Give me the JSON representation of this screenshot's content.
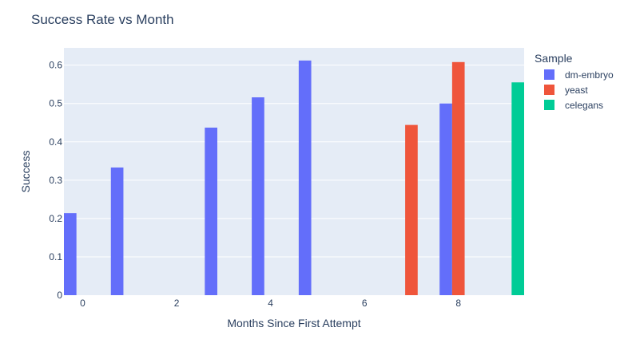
{
  "chart_data": {
    "type": "bar",
    "title": "Success Rate vs Month",
    "xlabel": "Months Since First Attempt",
    "ylabel": "Success",
    "xlim": [
      -0.4,
      9.4
    ],
    "ylim": [
      0,
      0.645
    ],
    "xticks": [
      0,
      2,
      4,
      6,
      8
    ],
    "yticks": [
      0,
      0.1,
      0.2,
      0.3,
      0.4,
      0.5,
      0.6
    ],
    "ytick_labels": [
      "0",
      "0.1",
      "0.2",
      "0.3",
      "0.4",
      "0.5",
      "0.6"
    ],
    "grid": true,
    "legend": {
      "title": "Sample",
      "position": "right"
    },
    "series": [
      {
        "name": "dm-embryo",
        "color": "#636efa",
        "x": [
          0,
          1,
          3,
          4,
          5,
          8
        ],
        "values": [
          0.214,
          0.333,
          0.437,
          0.516,
          0.612,
          0.5
        ]
      },
      {
        "name": "yeast",
        "color": "#ef553b",
        "x": [
          7,
          8
        ],
        "values": [
          0.444,
          0.608
        ]
      },
      {
        "name": "celegans",
        "color": "#00cc96",
        "x": [
          9
        ],
        "values": [
          0.555
        ]
      }
    ],
    "plot_bg": "#e5ecf6"
  }
}
